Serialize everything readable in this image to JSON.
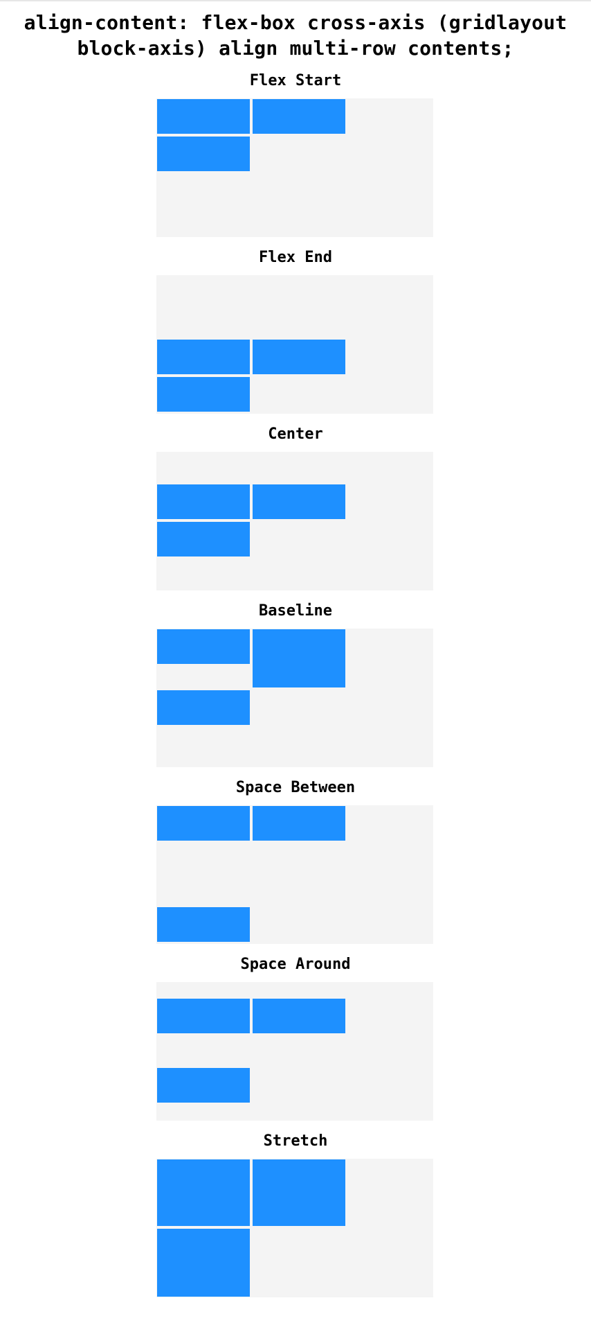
{
  "page": {
    "title_line1": "align-content: flex-box cross-axis (gridlayout",
    "title_line2": "block-axis) align multi-row contents;"
  },
  "colors": {
    "container_bg": "#f4f4f4",
    "item_fill": "#1e90ff",
    "title_text": "#000000"
  },
  "sections": [
    {
      "key": "flex-start",
      "title": "Flex Start"
    },
    {
      "key": "flex-end",
      "title": "Flex End"
    },
    {
      "key": "center",
      "title": "Center"
    },
    {
      "key": "baseline",
      "title": "Baseline"
    },
    {
      "key": "space-between",
      "title": "Space Between"
    },
    {
      "key": "space-around",
      "title": "Space Around"
    },
    {
      "key": "stretch",
      "title": "Stretch"
    }
  ]
}
